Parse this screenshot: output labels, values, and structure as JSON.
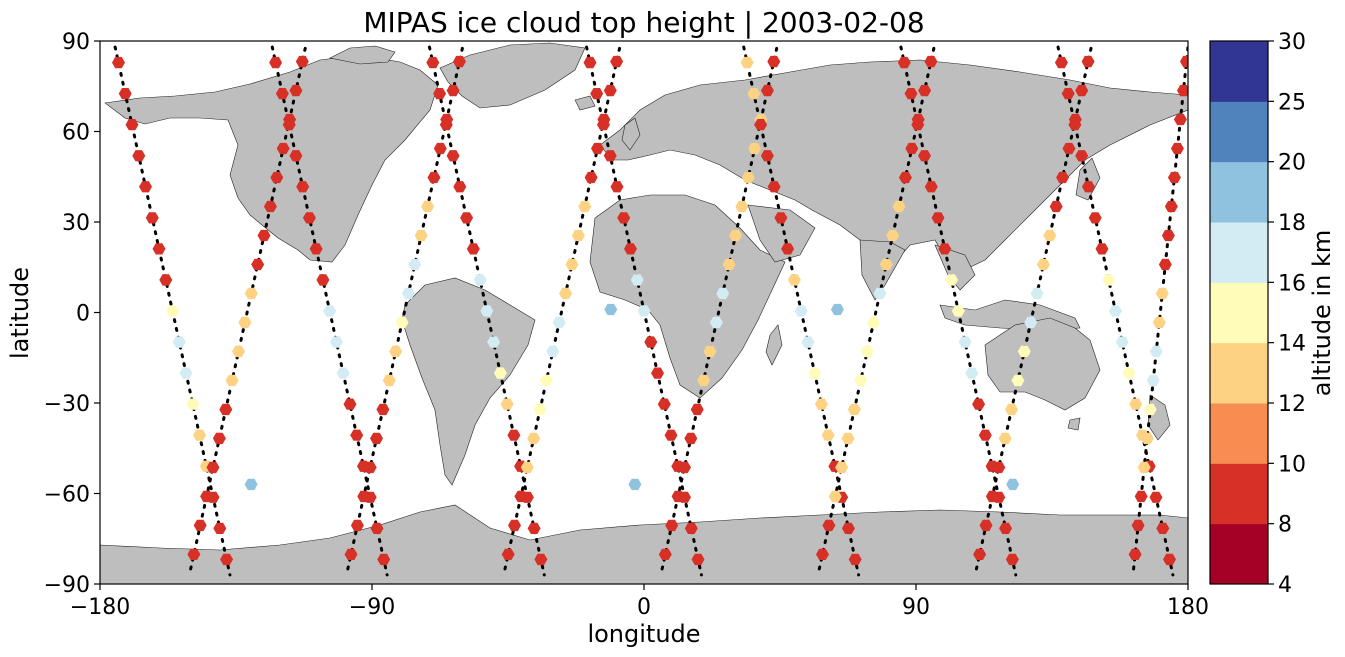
{
  "chart_data": {
    "type": "scatter",
    "title": "MIPAS ice cloud top height | 2003-02-08",
    "xlabel": "longitude",
    "ylabel": "latitude",
    "xlim": [
      -180,
      180
    ],
    "ylim": [
      -90,
      90
    ],
    "xticks": [
      -180,
      -90,
      0,
      90,
      180
    ],
    "xtick_labels": [
      "−180",
      "−90",
      "0",
      "90",
      "180"
    ],
    "yticks": [
      -90,
      -60,
      -30,
      0,
      30,
      60,
      90
    ],
    "ytick_labels": [
      "−90",
      "−60",
      "−30",
      "0",
      "30",
      "60",
      "90"
    ],
    "grid": false,
    "basemap": "world land masses in grey (#bebebe)",
    "colorbar": {
      "label": "altitude in km",
      "boundaries": [
        4,
        8,
        10,
        12,
        14,
        16,
        18,
        20,
        25,
        30
      ],
      "tick_labels": [
        "4",
        "8",
        "10",
        "12",
        "14",
        "16",
        "18",
        "20",
        "25",
        "30"
      ],
      "colors": [
        "#a50026",
        "#d73027",
        "#f88d52",
        "#fed283",
        "#fffbb9",
        "#d3ecf3",
        "#8fc2de",
        "#5083bc",
        "#313695"
      ]
    },
    "tracks": [
      {
        "lon0": -175,
        "lat0": 88,
        "lon1": -137,
        "lat1": -87,
        "alt": [
          9,
          9,
          8,
          8,
          8,
          8,
          9,
          9,
          15,
          17,
          17,
          15,
          12,
          12,
          9,
          8,
          8
        ]
      },
      {
        "lon0": -150,
        "lat0": -85,
        "lon1": -112,
        "lat1": 88,
        "alt": [
          9,
          9,
          9,
          9,
          9,
          9,
          12,
          12,
          12,
          12,
          9,
          9,
          9,
          9,
          9,
          8,
          8,
          8
        ]
      },
      {
        "lon0": -123,
        "lat0": 88,
        "lon1": -85,
        "lat1": -87,
        "alt": [
          9,
          9,
          9,
          9,
          8,
          8,
          9,
          9,
          17,
          17,
          17,
          9,
          9,
          9,
          9,
          8,
          8
        ]
      },
      {
        "lon0": -98,
        "lat0": -85,
        "lon1": -60,
        "lat1": 88,
        "alt": [
          8,
          8,
          9,
          9,
          8,
          8,
          12,
          12,
          15,
          17,
          17,
          12,
          12,
          9,
          9,
          8,
          8,
          8
        ]
      },
      {
        "lon0": -71,
        "lat0": 88,
        "lon1": -33,
        "lat1": -87,
        "alt": [
          9,
          8,
          8,
          8,
          8,
          8,
          9,
          17,
          17,
          17,
          15,
          12,
          9,
          9,
          9,
          8,
          8
        ]
      },
      {
        "lon0": -46,
        "lat0": -85,
        "lon1": -8,
        "lat1": 88,
        "alt": [
          9,
          9,
          9,
          12,
          12,
          15,
          15,
          17,
          17,
          12,
          12,
          12,
          12,
          9,
          9,
          9,
          8,
          8
        ]
      },
      {
        "lon0": -19,
        "lat0": 88,
        "lon1": 19,
        "lat1": -87,
        "alt": [
          8,
          8,
          8,
          8,
          9,
          9,
          9,
          17,
          17,
          9,
          9,
          8,
          8,
          8,
          8,
          8,
          8
        ]
      },
      {
        "lon0": 6,
        "lat0": -85,
        "lon1": 44,
        "lat1": 88,
        "alt": [
          9,
          9,
          9,
          9,
          9,
          9,
          12,
          12,
          17,
          17,
          12,
          12,
          12,
          12,
          12,
          12,
          9,
          9
        ]
      },
      {
        "lon0": 33,
        "lat0": 88,
        "lon1": 71,
        "lat1": -87,
        "alt": [
          12,
          12,
          9,
          9,
          9,
          9,
          9,
          12,
          17,
          17,
          15,
          12,
          12,
          9,
          9,
          9,
          8
        ]
      },
      {
        "lon0": 58,
        "lat0": -85,
        "lon1": 96,
        "lat1": 88,
        "alt": [
          9,
          9,
          12,
          12,
          12,
          12,
          15,
          15,
          15,
          17,
          12,
          12,
          12,
          9,
          9,
          9,
          8,
          8
        ]
      },
      {
        "lon0": 85,
        "lat0": 88,
        "lon1": 123,
        "lat1": -87,
        "alt": [
          9,
          9,
          9,
          9,
          9,
          9,
          9,
          15,
          15,
          17,
          17,
          9,
          9,
          9,
          9,
          8,
          8
        ]
      },
      {
        "lon0": 110,
        "lat0": -85,
        "lon1": 148,
        "lat1": 88,
        "alt": [
          9,
          9,
          9,
          9,
          12,
          12,
          15,
          15,
          17,
          17,
          12,
          12,
          9,
          9,
          9,
          9,
          8,
          8
        ]
      },
      {
        "lon0": 137,
        "lat0": 88,
        "lon1": 175,
        "lat1": -87,
        "alt": [
          8,
          8,
          9,
          9,
          9,
          9,
          9,
          15,
          17,
          17,
          15,
          12,
          12,
          9,
          9,
          9,
          8
        ]
      },
      {
        "lon0": 162,
        "lat0": -85,
        "lon1": 180,
        "lat1": 88,
        "alt": [
          9,
          9,
          9,
          12,
          12,
          15,
          17,
          17,
          12,
          12,
          9,
          9,
          9,
          8,
          8,
          8,
          8,
          8
        ]
      }
    ],
    "isolated_points": [
      {
        "lon": -130,
        "lat": -57,
        "alt": 19
      },
      {
        "lon": -11,
        "lat": 1,
        "alt": 19
      },
      {
        "lon": -3,
        "lat": -57,
        "alt": 19
      },
      {
        "lon": 64,
        "lat": 1,
        "alt": 19
      },
      {
        "lon": 122,
        "lat": -57,
        "alt": 19
      }
    ]
  }
}
